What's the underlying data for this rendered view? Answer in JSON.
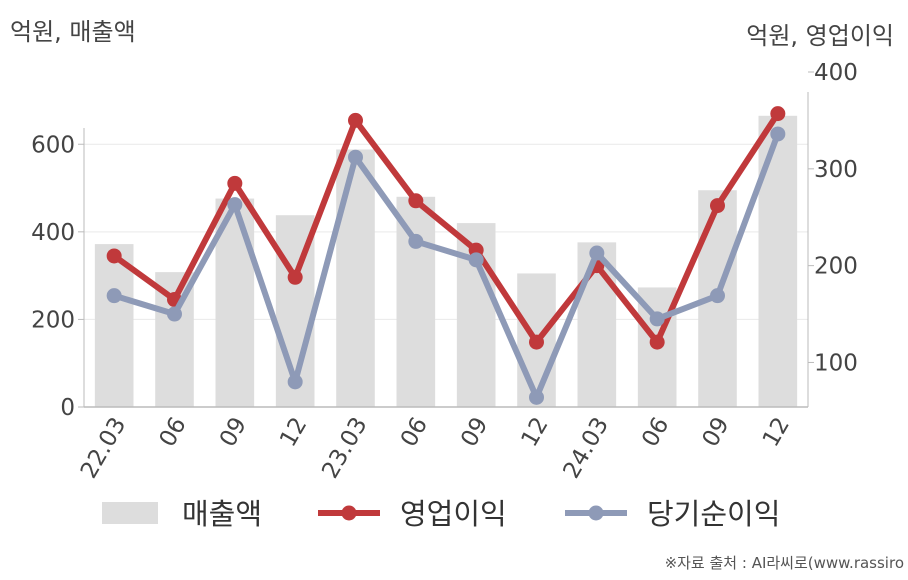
{
  "units": {
    "left": "억원, 매출액",
    "right": "억원, 영업이익"
  },
  "source": "※자료 출처 : AI라씨로(www.rassiro",
  "chart_data": {
    "type": "bar+line",
    "categories": [
      "22.03",
      "06",
      "09",
      "12",
      "23.03",
      "06",
      "09",
      "12",
      "24.03",
      "06",
      "09",
      "12"
    ],
    "y_left": {
      "ticks": [
        0,
        200,
        400,
        600
      ],
      "range": [
        0,
        765
      ]
    },
    "y_right": {
      "ticks": [
        100,
        200,
        300,
        400
      ],
      "range": [
        54,
        400
      ]
    },
    "grid": true,
    "legend_position": "bottom",
    "series": [
      {
        "name": "매출액",
        "type": "bar",
        "axis": "left",
        "color": "#dddddd",
        "values": [
          372,
          308,
          476,
          438,
          588,
          480,
          420,
          305,
          376,
          273,
          495,
          665
        ]
      },
      {
        "name": "영업이익",
        "type": "line",
        "axis": "right",
        "color": "#c0393b",
        "values": [
          210,
          165,
          285,
          188,
          350,
          267,
          216,
          121,
          200,
          121,
          262,
          357
        ]
      },
      {
        "name": "당기순이익",
        "type": "line",
        "axis": "right",
        "color": "#8e9ab7",
        "values": [
          169,
          150,
          263,
          80,
          312,
          225,
          206,
          64,
          213,
          145,
          169,
          336
        ]
      }
    ]
  }
}
